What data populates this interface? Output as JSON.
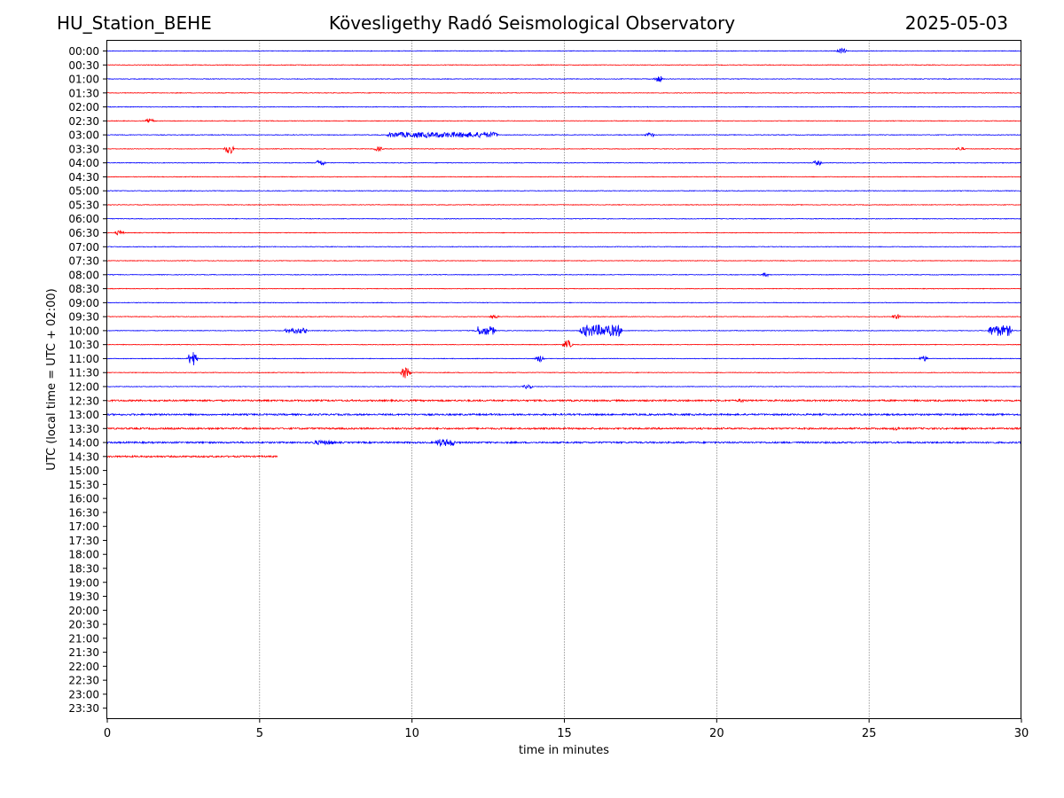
{
  "header": {
    "station": "HU_Station_BEHE",
    "title": "Kövesligethy Radó Seismological Observatory",
    "date": "2025-05-03"
  },
  "chart_data": {
    "type": "line",
    "title": "Kövesligethy Radó Seismological Observatory",
    "xlabel": "time in minutes",
    "ylabel": "UTC (local time = UTC + 02:00)",
    "xlim": [
      0,
      30
    ],
    "x_ticks": [
      "0",
      "5",
      "10",
      "15",
      "20",
      "25",
      "30"
    ],
    "x_grid": true,
    "grid_style": "dotted vertical at 5-minute marks",
    "trace_colors": [
      "#0000ff",
      "#ff0000"
    ],
    "rows": [
      "00:00",
      "00:30",
      "01:00",
      "01:30",
      "02:00",
      "02:30",
      "03:00",
      "03:30",
      "04:00",
      "04:30",
      "05:00",
      "05:30",
      "06:00",
      "06:30",
      "07:00",
      "07:30",
      "08:00",
      "08:30",
      "09:00",
      "09:30",
      "10:00",
      "10:30",
      "11:00",
      "11:30",
      "12:00",
      "12:30",
      "13:00",
      "13:30",
      "14:00",
      "14:30",
      "15:00",
      "15:30",
      "16:00",
      "16:30",
      "17:00",
      "17:30",
      "18:00",
      "18:30",
      "19:00",
      "19:30",
      "20:00",
      "20:30",
      "21:00",
      "21:30",
      "22:00",
      "22:30",
      "23:00",
      "23:30"
    ],
    "recorded_until": {
      "row": "14:30",
      "minute": 5.6
    },
    "events": [
      {
        "row": "00:00",
        "minute": 24.1,
        "amp": 0.6
      },
      {
        "row": "01:00",
        "minute": 18.1,
        "amp": 0.7
      },
      {
        "row": "02:30",
        "minute": 1.4,
        "amp": 0.4
      },
      {
        "row": "03:00",
        "minute": 11.0,
        "amp": 0.6,
        "span": 3.5
      },
      {
        "row": "03:00",
        "minute": 17.8,
        "amp": 0.5
      },
      {
        "row": "03:30",
        "minute": 4.0,
        "amp": 1.0
      },
      {
        "row": "03:30",
        "minute": 8.9,
        "amp": 0.5
      },
      {
        "row": "03:30",
        "minute": 28.0,
        "amp": 0.4
      },
      {
        "row": "04:00",
        "minute": 7.0,
        "amp": 0.7
      },
      {
        "row": "04:00",
        "minute": 23.3,
        "amp": 0.5
      },
      {
        "row": "06:30",
        "minute": 0.4,
        "amp": 0.5
      },
      {
        "row": "08:00",
        "minute": 21.6,
        "amp": 0.4
      },
      {
        "row": "09:30",
        "minute": 12.7,
        "amp": 0.4
      },
      {
        "row": "09:30",
        "minute": 25.9,
        "amp": 0.5
      },
      {
        "row": "10:00",
        "minute": 6.2,
        "amp": 0.6,
        "span": 0.6
      },
      {
        "row": "10:00",
        "minute": 12.4,
        "amp": 1.0,
        "span": 0.5
      },
      {
        "row": "10:00",
        "minute": 16.2,
        "amp": 1.3,
        "span": 1.2
      },
      {
        "row": "10:00",
        "minute": 29.3,
        "amp": 1.2,
        "span": 0.6
      },
      {
        "row": "10:30",
        "minute": 15.1,
        "amp": 0.9
      },
      {
        "row": "11:00",
        "minute": 2.8,
        "amp": 1.6
      },
      {
        "row": "11:00",
        "minute": 14.2,
        "amp": 0.7
      },
      {
        "row": "11:00",
        "minute": 26.8,
        "amp": 0.6
      },
      {
        "row": "11:30",
        "minute": 9.8,
        "amp": 1.3
      },
      {
        "row": "12:00",
        "minute": 13.8,
        "amp": 0.5
      },
      {
        "row": "12:30",
        "minute": 20.8,
        "amp": 0.4
      },
      {
        "row": "13:30",
        "minute": 25.9,
        "amp": 0.4
      },
      {
        "row": "14:00",
        "minute": 7.1,
        "amp": 0.5,
        "span": 0.6
      },
      {
        "row": "14:00",
        "minute": 11.1,
        "amp": 0.8,
        "span": 0.5
      }
    ],
    "noisy_rows": [
      "12:30",
      "13:00",
      "13:30",
      "14:00",
      "14:30"
    ]
  }
}
